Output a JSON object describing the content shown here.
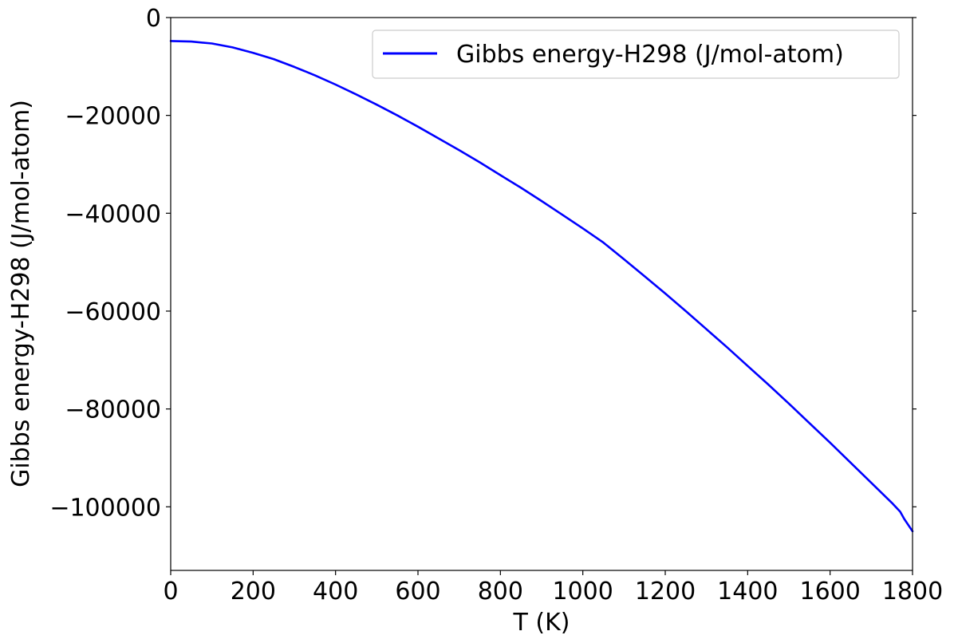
{
  "chart_data": {
    "type": "line",
    "title": "",
    "xlabel": "T (K)",
    "ylabel": "Gibbs energy-H298 (J/mol-atom)",
    "xlim": [
      0,
      1800
    ],
    "ylim": [
      -113000,
      0
    ],
    "x_ticks": [
      0,
      200,
      400,
      600,
      800,
      1000,
      1200,
      1400,
      1600,
      1800
    ],
    "x_tick_labels": [
      "0",
      "200",
      "400",
      "600",
      "800",
      "1000",
      "1200",
      "1400",
      "1600",
      "1800"
    ],
    "y_ticks": [
      0,
      -20000,
      -40000,
      -60000,
      -80000,
      -100000
    ],
    "y_tick_labels": [
      "0",
      "−20000",
      "−40000",
      "−60000",
      "−80000",
      "−100000"
    ],
    "grid": false,
    "legend_position": "top-right",
    "series": [
      {
        "name": "Gibbs energy-H298 (J/mol-atom)",
        "color": "#0000ff",
        "x": [
          0,
          50,
          100,
          150,
          200,
          250,
          300,
          350,
          400,
          450,
          500,
          550,
          600,
          650,
          700,
          750,
          800,
          850,
          900,
          950,
          1000,
          1050,
          1100,
          1150,
          1200,
          1250,
          1300,
          1350,
          1400,
          1450,
          1500,
          1550,
          1600,
          1650,
          1700,
          1750,
          1770,
          1780,
          1800
        ],
        "y": [
          -4800,
          -4900,
          -5300,
          -6100,
          -7200,
          -8500,
          -10100,
          -11800,
          -13700,
          -15700,
          -17800,
          -20000,
          -22300,
          -24700,
          -27100,
          -29600,
          -32200,
          -34800,
          -37500,
          -40300,
          -43100,
          -46000,
          -49400,
          -52900,
          -56400,
          -60000,
          -63700,
          -67400,
          -71200,
          -75000,
          -78900,
          -82900,
          -86900,
          -91000,
          -95100,
          -99200,
          -101000,
          -102500,
          -105000
        ]
      }
    ]
  }
}
